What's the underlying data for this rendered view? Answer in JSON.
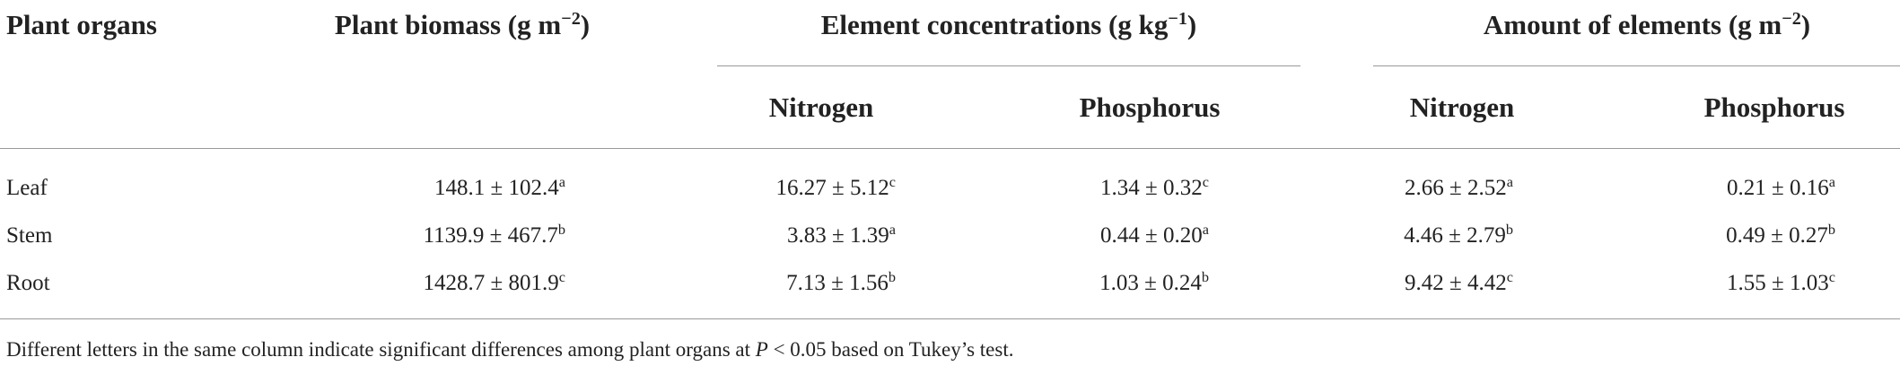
{
  "table": {
    "header": {
      "organs": "Plant organs",
      "biomass": {
        "text": "Plant biomass (g m",
        "sup": "−2",
        "tail": ")"
      },
      "concentrations": {
        "text": "Element concentrations (g kg",
        "sup": "−1",
        "tail": ")"
      },
      "amount": {
        "text": "Amount of elements (g m",
        "sup": "−2",
        "tail": ")"
      },
      "sub": [
        "Nitrogen",
        "Phosphorus",
        "Nitrogen",
        "Phosphorus"
      ]
    },
    "rows": [
      {
        "organ": "Leaf",
        "cells": [
          {
            "value": "148.1 ± 102.4",
            "sup": "a"
          },
          {
            "value": "16.27 ± 5.12",
            "sup": "c"
          },
          {
            "value": "1.34 ± 0.32",
            "sup": "c"
          },
          {
            "value": "2.66 ± 2.52",
            "sup": "a"
          },
          {
            "value": "0.21 ± 0.16",
            "sup": "a"
          }
        ]
      },
      {
        "organ": "Stem",
        "cells": [
          {
            "value": "1139.9 ± 467.7",
            "sup": "b"
          },
          {
            "value": "3.83 ± 1.39",
            "sup": "a"
          },
          {
            "value": "0.44 ± 0.20",
            "sup": "a"
          },
          {
            "value": "4.46 ± 2.79",
            "sup": "b"
          },
          {
            "value": "0.49 ± 0.27",
            "sup": "b"
          }
        ]
      },
      {
        "organ": "Root",
        "cells": [
          {
            "value": "1428.7 ± 801.9",
            "sup": "c"
          },
          {
            "value": "7.13 ± 1.56",
            "sup": "b"
          },
          {
            "value": "1.03 ± 0.24",
            "sup": "b"
          },
          {
            "value": "9.42 ± 4.42",
            "sup": "c"
          },
          {
            "value": "1.55 ± 1.03",
            "sup": "c"
          }
        ]
      }
    ],
    "footnote": {
      "text": "Different letters in the same column indicate significant differences among plant organs at ",
      "italic": "P",
      "tail": " < 0.05 based on Tukey’s test."
    }
  }
}
